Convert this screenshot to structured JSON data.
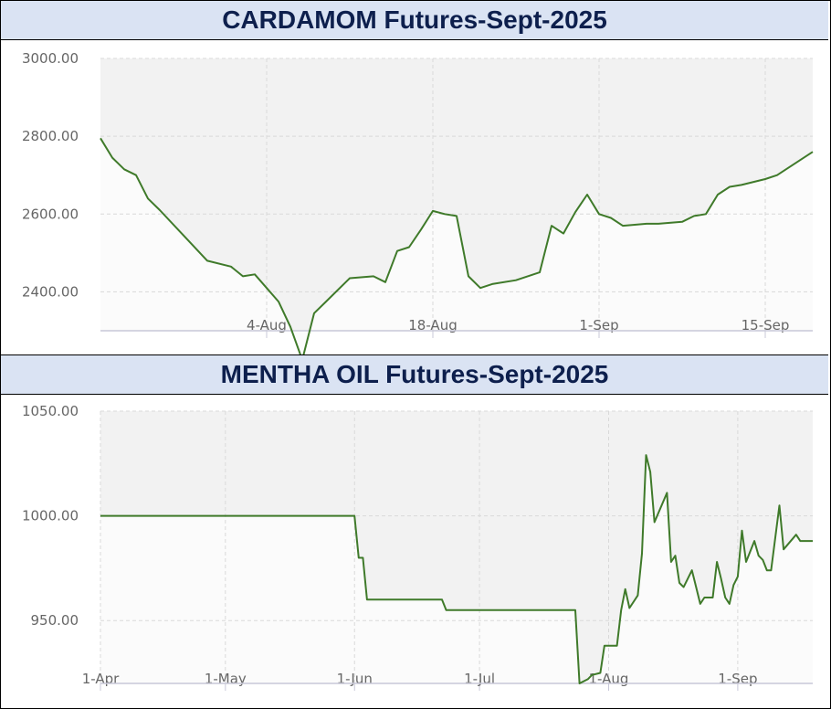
{
  "chart_data": [
    {
      "type": "line",
      "title": "CARDAMOM Futures-Sept-2025",
      "xlabel": "",
      "ylabel": "",
      "ylim": [
        2300,
        3000
      ],
      "y_ticks": [
        "3000.00",
        "2800.00",
        "2600.00",
        "2400.00"
      ],
      "y_tick_values": [
        3000,
        2800,
        2600,
        2400
      ],
      "x_ticks": [
        "4-Aug",
        "18-Aug",
        "1-Sep",
        "15-Sep"
      ],
      "x_tick_values": [
        "2025-08-04",
        "2025-08-18",
        "2025-09-01",
        "2025-09-15"
      ],
      "xlim": [
        "2025-07-21",
        "2025-09-19"
      ],
      "grid": true,
      "line_color": "#3f7a2a",
      "series": [
        {
          "x": [
            "2025-07-21",
            "2025-07-22",
            "2025-07-23",
            "2025-07-24",
            "2025-07-25",
            "2025-07-26",
            "2025-07-28",
            "2025-07-30",
            "2025-08-01",
            "2025-08-02",
            "2025-08-03",
            "2025-08-04",
            "2025-08-05",
            "2025-08-06",
            "2025-08-07",
            "2025-08-08",
            "2025-08-09",
            "2025-08-11",
            "2025-08-13",
            "2025-08-14",
            "2025-08-15",
            "2025-08-16",
            "2025-08-17",
            "2025-08-18",
            "2025-08-19",
            "2025-08-20",
            "2025-08-21",
            "2025-08-22",
            "2025-08-23",
            "2025-08-25",
            "2025-08-27",
            "2025-08-28",
            "2025-08-29",
            "2025-08-30",
            "2025-08-31",
            "2025-09-01",
            "2025-09-02",
            "2025-09-03",
            "2025-09-05",
            "2025-09-06",
            "2025-09-08",
            "2025-09-09",
            "2025-09-10",
            "2025-09-11",
            "2025-09-12",
            "2025-09-13",
            "2025-09-15",
            "2025-09-16",
            "2025-09-17",
            "2025-09-18",
            "2025-09-19"
          ],
          "values": [
            2795,
            2745,
            2715,
            2700,
            2640,
            2610,
            2545,
            2480,
            2465,
            2440,
            2445,
            2410,
            2375,
            2310,
            2225,
            2345,
            2375,
            2435,
            2440,
            2425,
            2505,
            2515,
            2560,
            2608,
            2600,
            2595,
            2440,
            2410,
            2420,
            2430,
            2450,
            2570,
            2550,
            2605,
            2650,
            2600,
            2590,
            2570,
            2575,
            2575,
            2580,
            2595,
            2600,
            2650,
            2670,
            2675,
            2690,
            2700,
            2720,
            2740,
            2760
          ]
        }
      ]
    },
    {
      "type": "line",
      "title": "MENTHA OIL Futures-Sept-2025",
      "xlabel": "",
      "ylabel": "",
      "ylim": [
        920,
        1050
      ],
      "y_ticks": [
        "1050.00",
        "1000.00",
        "950.00"
      ],
      "y_tick_values": [
        1050,
        1000,
        950
      ],
      "x_ticks": [
        "1-Apr",
        "1-May",
        "1-Jun",
        "1-Jul",
        "1-Aug",
        "1-Sep"
      ],
      "x_tick_values": [
        "2025-04-01",
        "2025-05-01",
        "2025-06-01",
        "2025-07-01",
        "2025-08-01",
        "2025-09-01"
      ],
      "xlim": [
        "2025-04-01",
        "2025-09-19"
      ],
      "grid": true,
      "line_color": "#3f7a2a",
      "series": [
        {
          "x": [
            "2025-04-01",
            "2025-06-01",
            "2025-06-02",
            "2025-06-03",
            "2025-06-04",
            "2025-06-22",
            "2025-06-23",
            "2025-07-24",
            "2025-07-25",
            "2025-07-27",
            "2025-07-28",
            "2025-07-30",
            "2025-07-31",
            "2025-08-03",
            "2025-08-04",
            "2025-08-05",
            "2025-08-06",
            "2025-08-08",
            "2025-08-09",
            "2025-08-10",
            "2025-08-11",
            "2025-08-12",
            "2025-08-15",
            "2025-08-16",
            "2025-08-17",
            "2025-08-18",
            "2025-08-19",
            "2025-08-21",
            "2025-08-22",
            "2025-08-23",
            "2025-08-24",
            "2025-08-26",
            "2025-08-27",
            "2025-08-28",
            "2025-08-29",
            "2025-08-30",
            "2025-08-31",
            "2025-09-01",
            "2025-09-02",
            "2025-09-03",
            "2025-09-05",
            "2025-09-06",
            "2025-09-07",
            "2025-09-08",
            "2025-09-09",
            "2025-09-11",
            "2025-09-12",
            "2025-09-15",
            "2025-09-16",
            "2025-09-17",
            "2025-09-18",
            "2025-09-19"
          ],
          "values": [
            1000,
            1000,
            980,
            980,
            960,
            960,
            955,
            955,
            920,
            922,
            924,
            925,
            938,
            938,
            955,
            965,
            956,
            962,
            982,
            1029,
            1021,
            997,
            1011,
            978,
            981,
            968,
            966,
            974,
            966,
            958,
            961,
            961,
            978,
            970,
            961,
            958,
            967,
            971,
            993,
            978,
            988,
            981,
            979,
            974,
            974,
            1005,
            984,
            991,
            988,
            988,
            988,
            988
          ]
        }
      ]
    }
  ]
}
